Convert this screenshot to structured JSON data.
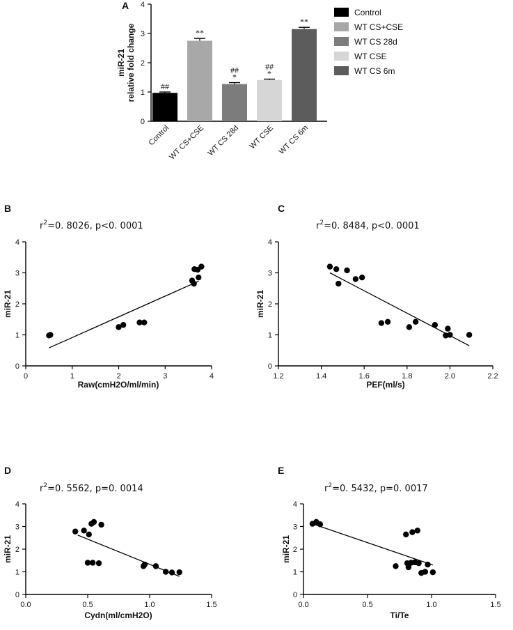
{
  "chart_data": [
    {
      "panel": "A",
      "type": "bar",
      "ylabel": "miR-21\nrelative fold change",
      "ylim": [
        0,
        4
      ],
      "yticks": [
        0,
        1,
        2,
        3,
        4
      ],
      "categories": [
        "Control",
        "WT CS+CSE",
        "WT CS 28d",
        "WT CSE",
        "WT CS 6m"
      ],
      "values": [
        0.97,
        2.75,
        1.27,
        1.41,
        3.15
      ],
      "errors": [
        0.03,
        0.08,
        0.05,
        0.03,
        0.06
      ],
      "colors": [
        "#000000",
        "#a8a8a8",
        "#7c7c7c",
        "#d6d6d6",
        "#5c5c5c"
      ],
      "annotations": [
        [
          "##"
        ],
        [
          "**"
        ],
        [
          "##",
          "*"
        ],
        [
          "##",
          "*"
        ],
        [
          "**"
        ]
      ],
      "legend": [
        "Control",
        "WT CS+CSE",
        "WT CS 28d",
        "WT CSE",
        "WT CS 6m"
      ]
    },
    {
      "panel": "B",
      "type": "scatter",
      "stat_label": "r²=0. 8026,  p<0. 0001",
      "stat_parts": [
        "r",
        "2",
        "=0. 8026,   p<0. 0001"
      ],
      "xlabel": "Raw(cmH2O/ml/min)",
      "ylabel": "miR-21",
      "xlim": [
        0,
        4
      ],
      "ylim": [
        0,
        4
      ],
      "xticks": [
        "0",
        "1",
        "2",
        "3",
        "4"
      ],
      "yticks": [
        "0",
        "1",
        "2",
        "3",
        "4"
      ],
      "points": [
        [
          0.5,
          0.98
        ],
        [
          0.53,
          1.0
        ],
        [
          2.0,
          1.25
        ],
        [
          2.1,
          1.32
        ],
        [
          2.45,
          1.4
        ],
        [
          2.55,
          1.4
        ],
        [
          3.58,
          2.75
        ],
        [
          3.62,
          2.65
        ],
        [
          3.63,
          3.12
        ],
        [
          3.7,
          3.1
        ],
        [
          3.72,
          2.85
        ],
        [
          3.78,
          3.2
        ]
      ],
      "fit": [
        [
          0.5,
          0.58
        ],
        [
          3.72,
          2.73
        ]
      ]
    },
    {
      "panel": "C",
      "type": "scatter",
      "stat_label": "r²=0. 8484,  p<0. 0001",
      "stat_parts": [
        "r",
        "2",
        "=0. 8484,   p<0. 0001"
      ],
      "xlabel": "PEF(ml/s)",
      "ylabel": "miR-21",
      "xlim": [
        1.2,
        2.2
      ],
      "ylim": [
        0,
        4
      ],
      "xticks": [
        "1.2",
        "1.4",
        "1.6",
        "1.8",
        "2.0",
        "2.2"
      ],
      "yticks": [
        "0",
        "1",
        "2",
        "3",
        "4"
      ],
      "points": [
        [
          1.44,
          3.2
        ],
        [
          1.47,
          3.12
        ],
        [
          1.48,
          2.65
        ],
        [
          1.52,
          3.08
        ],
        [
          1.56,
          2.8
        ],
        [
          1.59,
          2.85
        ],
        [
          1.68,
          1.38
        ],
        [
          1.71,
          1.42
        ],
        [
          1.81,
          1.25
        ],
        [
          1.84,
          1.42
        ],
        [
          1.93,
          1.32
        ],
        [
          1.98,
          0.98
        ],
        [
          1.99,
          1.2
        ],
        [
          2.0,
          1.0
        ],
        [
          2.09,
          1.0
        ]
      ],
      "fit": [
        [
          1.44,
          3.0
        ],
        [
          2.09,
          0.65
        ]
      ]
    },
    {
      "panel": "D",
      "type": "scatter",
      "stat_label": "r²=0. 5562,  p=0. 0014",
      "stat_parts": [
        "r",
        "2",
        "=0. 5562,   p=0. 0014"
      ],
      "xlabel": "Cydn(ml/cmH2O)",
      "ylabel": "miR-21",
      "xlim": [
        0.0,
        1.5
      ],
      "ylim": [
        0,
        4
      ],
      "xticks": [
        "0.0",
        "0.5",
        "1.0",
        "1.5"
      ],
      "yticks": [
        "0",
        "1",
        "2",
        "3",
        "4"
      ],
      "points": [
        [
          0.4,
          2.78
        ],
        [
          0.47,
          2.82
        ],
        [
          0.5,
          1.4
        ],
        [
          0.51,
          2.65
        ],
        [
          0.53,
          3.12
        ],
        [
          0.54,
          1.4
        ],
        [
          0.55,
          3.2
        ],
        [
          0.59,
          1.38
        ],
        [
          0.61,
          3.08
        ],
        [
          0.95,
          1.25
        ],
        [
          0.96,
          1.32
        ],
        [
          1.05,
          1.25
        ],
        [
          1.13,
          1.0
        ],
        [
          1.18,
          0.97
        ],
        [
          1.24,
          0.98
        ]
      ],
      "fit": [
        [
          0.42,
          2.62
        ],
        [
          1.24,
          0.8
        ]
      ]
    },
    {
      "panel": "E",
      "type": "scatter",
      "stat_label": "r²=0. 5432,  p=0. 0017",
      "stat_parts": [
        "r",
        "2",
        "=0. 5432,   p=0. 0017"
      ],
      "xlabel": "Ti/Te",
      "ylabel": "miR-21",
      "xlim": [
        0.0,
        1.5
      ],
      "ylim": [
        0,
        4
      ],
      "xticks": [
        "0.0",
        "0.5",
        "1.0",
        "1.5"
      ],
      "yticks": [
        "0",
        "1",
        "2",
        "3",
        "4"
      ],
      "points": [
        [
          0.07,
          3.12
        ],
        [
          0.1,
          3.2
        ],
        [
          0.13,
          3.1
        ],
        [
          0.72,
          1.25
        ],
        [
          0.8,
          2.65
        ],
        [
          0.81,
          1.38
        ],
        [
          0.82,
          1.2
        ],
        [
          0.84,
          1.4
        ],
        [
          0.85,
          2.75
        ],
        [
          0.87,
          1.42
        ],
        [
          0.89,
          2.82
        ],
        [
          0.9,
          1.38
        ],
        [
          0.92,
          0.95
        ],
        [
          0.95,
          1.0
        ],
        [
          0.97,
          1.32
        ],
        [
          1.01,
          0.98
        ]
      ],
      "fit": [
        [
          0.07,
          3.12
        ],
        [
          1.01,
          1.3
        ]
      ]
    }
  ]
}
